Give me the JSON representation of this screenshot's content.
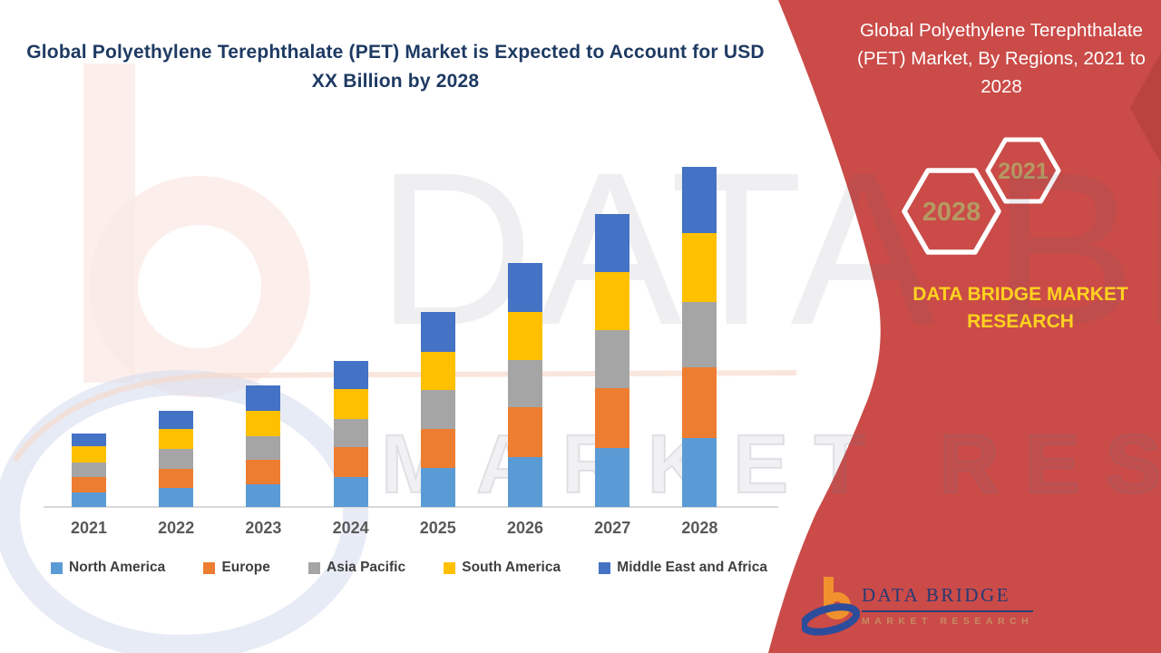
{
  "main_chart": {
    "title": "Global Polyethylene Terephthalate (PET) Market is Expected to Account for USD XX Billion by 2028"
  },
  "chart_data": {
    "type": "bar",
    "stacked": true,
    "title": "Global Polyethylene Terephthalate (PET) Market is Expected to Account for USD XX Billion by 2028",
    "categories": [
      "2021",
      "2022",
      "2023",
      "2024",
      "2025",
      "2026",
      "2027",
      "2028"
    ],
    "series": [
      {
        "name": "North America",
        "color": "#5B9BD5",
        "values": [
          16,
          21,
          25,
          33,
          43,
          55,
          65,
          76
        ]
      },
      {
        "name": "Europe",
        "color": "#ED7D31",
        "values": [
          17,
          21,
          27,
          33,
          43,
          55,
          66,
          78
        ]
      },
      {
        "name": "Asia Pacific",
        "color": "#A5A5A5",
        "values": [
          16,
          22,
          26,
          31,
          43,
          52,
          64,
          72
        ]
      },
      {
        "name": "South America",
        "color": "#FFC000",
        "values": [
          18,
          22,
          28,
          33,
          42,
          53,
          64,
          76
        ]
      },
      {
        "name": "Middle East and Africa",
        "color": "#4472C4",
        "values": [
          14,
          20,
          28,
          31,
          44,
          54,
          64,
          73
        ]
      }
    ],
    "stack_order": "bottom-to-top follows series order",
    "value_units": "relative height, arbitrary units (market value masked as USD XX Billion; no numeric axis shown)",
    "xlabel": "",
    "ylabel": "",
    "grid": false,
    "legend_position": "bottom",
    "axis_line_color": "#D9D9D9"
  },
  "side_panel": {
    "title": "Global Polyethylene Terephthalate (PET) Market, By Regions, 2021 to 2028",
    "hexagon_small_label": "2021",
    "hexagon_large_label": "2028",
    "brand_text": "DATA BRIDGE MARKET RESEARCH",
    "background_color": "#CA4B48",
    "brand_text_color": "#FFD21F",
    "hexagon_label_color": "#B59A62"
  },
  "footer_logo": {
    "name_line": "DATA BRIDGE",
    "sub_line": "MARKET RESEARCH"
  },
  "watermark": {
    "big_text": "DATA BRIDGE",
    "outline_text": "MARKET RESEARCH"
  }
}
